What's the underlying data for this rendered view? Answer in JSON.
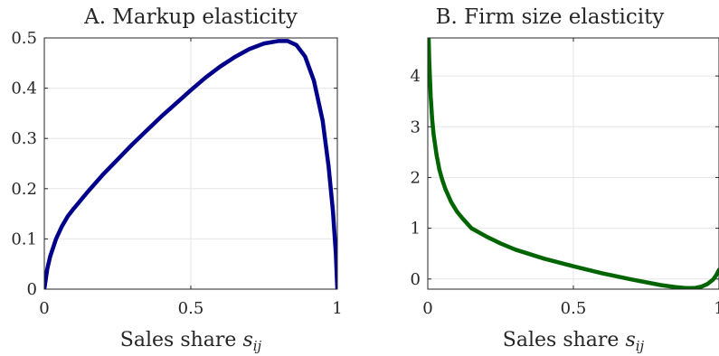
{
  "chart_data": [
    {
      "type": "line",
      "title": "A. Markup elasticity",
      "xlabel": "Sales share",
      "xlabel_var": "s",
      "xlabel_sub": "ij",
      "ylabel": "",
      "xlim": [
        0,
        1
      ],
      "ylim": [
        0,
        0.5
      ],
      "xticks": [
        0,
        0.5,
        1
      ],
      "xtick_labels": [
        "0",
        "0.5",
        "1"
      ],
      "yticks": [
        0,
        0.1,
        0.2,
        0.3,
        0.4,
        0.5
      ],
      "ytick_labels": [
        "0",
        "0.1",
        "0.2",
        "0.3",
        "0.4",
        "0.5"
      ],
      "grid": true,
      "series": [
        {
          "color": "#00008b",
          "x": [
            0.0,
            0.01,
            0.02,
            0.04,
            0.06,
            0.08,
            0.1,
            0.15,
            0.2,
            0.25,
            0.3,
            0.35,
            0.4,
            0.45,
            0.5,
            0.55,
            0.6,
            0.65,
            0.7,
            0.75,
            0.8,
            0.83,
            0.86,
            0.89,
            0.92,
            0.95,
            0.97,
            0.985,
            0.995,
            1.0
          ],
          "y": [
            0.0,
            0.04,
            0.065,
            0.1,
            0.125,
            0.145,
            0.16,
            0.195,
            0.228,
            0.258,
            0.288,
            0.316,
            0.344,
            0.37,
            0.396,
            0.421,
            0.443,
            0.462,
            0.478,
            0.489,
            0.494,
            0.494,
            0.486,
            0.463,
            0.415,
            0.335,
            0.245,
            0.155,
            0.07,
            0.0
          ]
        }
      ]
    },
    {
      "type": "line",
      "title": "B. Firm size elasticity",
      "xlabel": "Sales share",
      "xlabel_var": "s",
      "xlabel_sub": "ij",
      "ylabel": "",
      "xlim": [
        0,
        1
      ],
      "ylim": [
        -0.2,
        4.75
      ],
      "xticks": [
        0,
        0.5,
        1
      ],
      "xtick_labels": [
        "0",
        "0.5",
        "1"
      ],
      "yticks": [
        0,
        1,
        2,
        3,
        4
      ],
      "ytick_labels": [
        "0",
        "1",
        "2",
        "3",
        "4"
      ],
      "grid": true,
      "series": [
        {
          "color": "#006400",
          "x": [
            0.003,
            0.005,
            0.01,
            0.015,
            0.02,
            0.03,
            0.04,
            0.05,
            0.06,
            0.08,
            0.1,
            0.12,
            0.15,
            0.2,
            0.25,
            0.3,
            0.4,
            0.5,
            0.6,
            0.7,
            0.8,
            0.85,
            0.88,
            0.9,
            0.92,
            0.94,
            0.96,
            0.98,
            0.99,
            1.0
          ],
          "y": [
            4.75,
            4.3,
            3.6,
            3.15,
            2.85,
            2.45,
            2.15,
            1.95,
            1.78,
            1.52,
            1.33,
            1.19,
            1.0,
            0.84,
            0.7,
            0.58,
            0.4,
            0.25,
            0.11,
            -0.01,
            -0.12,
            -0.16,
            -0.175,
            -0.18,
            -0.175,
            -0.15,
            -0.1,
            -0.01,
            0.07,
            0.18
          ]
        }
      ]
    }
  ]
}
